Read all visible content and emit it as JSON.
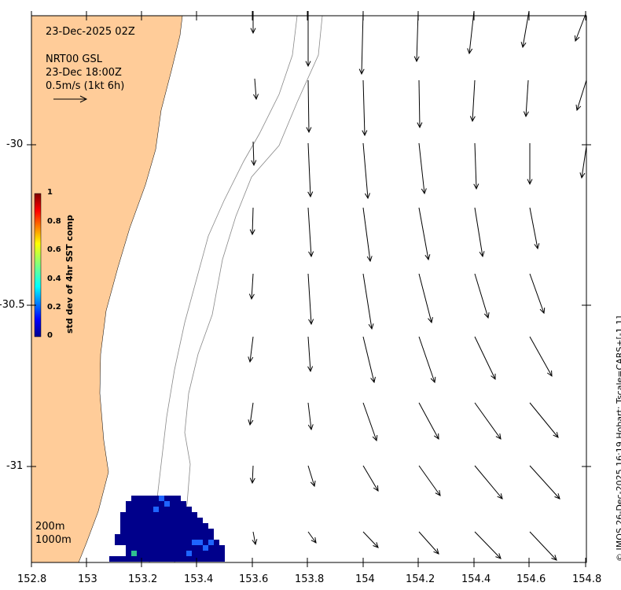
{
  "header": {
    "datetime": "23-Dec-2025 02Z",
    "product": "NRT00 GSL",
    "product_time": "23-Dec 18:00Z",
    "scale_label": "0.5m/s (1kt 6h)"
  },
  "colorbar": {
    "title": "std dev of 4hr SST comp",
    "ticks": [
      "0",
      "0.2",
      "0.4",
      "0.6",
      "0.8",
      "1"
    ]
  },
  "axes": {
    "x_ticks": [
      "152.8",
      "153",
      "153.2",
      "153.4",
      "153.6",
      "153.8",
      "154",
      "154.2",
      "154.4",
      "154.6",
      "154.8"
    ],
    "y_ticks": [
      "-30",
      "-30.5",
      "-31"
    ]
  },
  "contours": [
    "200m",
    "1000m"
  ],
  "credit": "© IMOS 26-Dec-2025 16:19 Hobart; Tscale=CARS+[-1 1]",
  "colors": {
    "land": "#ffcc99",
    "sst_low": "#00008b",
    "sst_mid": "#1e64ff",
    "arrow": "#000000"
  }
}
